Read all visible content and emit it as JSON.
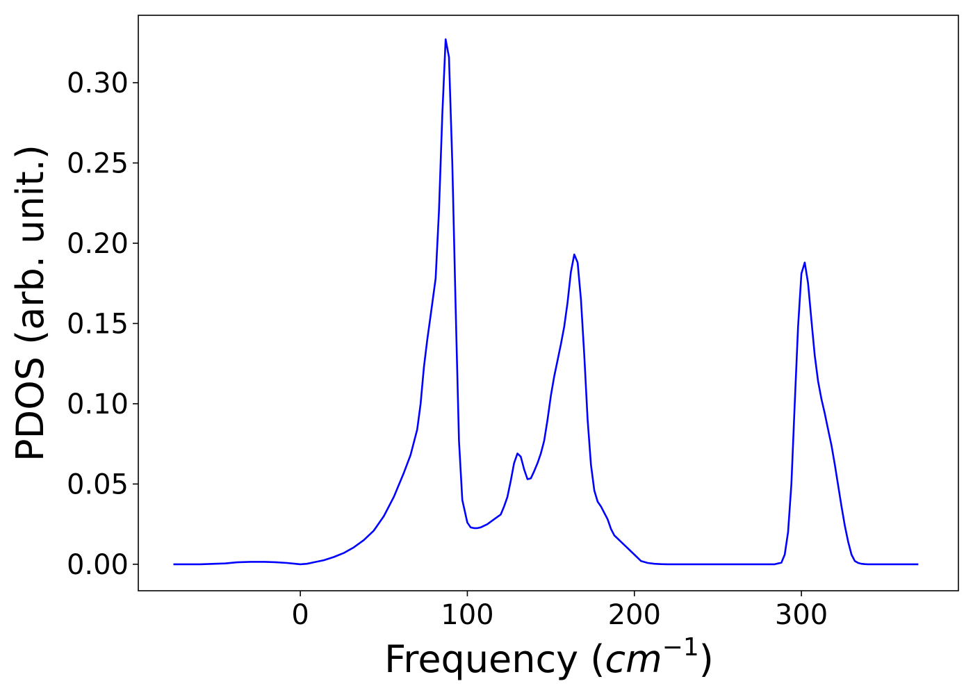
{
  "chart_data": {
    "type": "line",
    "title": "",
    "xlabel": "Frequency (",
    "xlabel_math": "cm",
    "xlabel_sup": "−1",
    "xlabel_close": ")",
    "ylabel": "PDOS (arb. unit.)",
    "xlim": [
      -97,
      394
    ],
    "ylim": [
      -0.0165,
      0.342
    ],
    "xticks": [
      0,
      100,
      200,
      300
    ],
    "xtick_labels": [
      "0",
      "100",
      "200",
      "300"
    ],
    "yticks": [
      0.0,
      0.05,
      0.1,
      0.15,
      0.2,
      0.25,
      0.3
    ],
    "ytick_labels": [
      "0.00",
      "0.05",
      "0.10",
      "0.15",
      "0.20",
      "0.25",
      "0.30"
    ],
    "grid": false,
    "line_color": "#0000ff",
    "series": [
      {
        "x": [
          -76,
          -60,
          -45,
          -38,
          -30,
          -22,
          -15,
          -8,
          -3,
          0,
          4,
          8,
          14,
          20,
          26,
          32,
          38,
          44,
          50,
          56,
          62,
          66,
          70,
          72,
          74,
          76,
          78,
          81,
          83,
          85,
          87,
          89,
          91,
          93,
          95,
          97,
          100,
          102,
          104,
          106,
          108,
          112,
          116,
          120,
          122,
          124,
          126,
          128,
          130,
          132,
          134,
          136,
          138,
          140,
          142,
          144,
          146,
          148,
          150,
          152,
          154,
          156,
          158,
          160,
          162,
          164,
          166,
          168,
          170,
          172,
          174,
          176,
          178,
          180,
          182,
          184,
          186,
          188,
          192,
          196,
          200,
          204,
          208,
          212,
          216,
          220,
          222,
          224,
          226,
          228,
          232,
          240,
          260,
          280,
          284,
          286,
          288,
          290,
          292,
          294,
          296,
          298,
          300,
          302,
          304,
          306,
          308,
          310,
          312,
          314,
          316,
          318,
          320,
          322,
          324,
          326,
          328,
          330,
          332,
          334,
          336,
          338,
          340,
          342,
          346,
          360,
          370
        ],
        "y": [
          0.0,
          0.0,
          0.0005,
          0.0012,
          0.0015,
          0.0015,
          0.0013,
          0.0008,
          0.0003,
          0.0,
          0.0003,
          0.0012,
          0.0025,
          0.0045,
          0.007,
          0.0105,
          0.015,
          0.021,
          0.03,
          0.042,
          0.057,
          0.068,
          0.084,
          0.1,
          0.123,
          0.14,
          0.155,
          0.178,
          0.22,
          0.28,
          0.327,
          0.316,
          0.25,
          0.16,
          0.077,
          0.04,
          0.026,
          0.023,
          0.0225,
          0.0225,
          0.023,
          0.025,
          0.028,
          0.031,
          0.036,
          0.042,
          0.052,
          0.063,
          0.069,
          0.067,
          0.059,
          0.053,
          0.0535,
          0.058,
          0.063,
          0.069,
          0.077,
          0.09,
          0.105,
          0.117,
          0.127,
          0.137,
          0.148,
          0.163,
          0.182,
          0.193,
          0.188,
          0.165,
          0.13,
          0.09,
          0.062,
          0.046,
          0.039,
          0.036,
          0.032,
          0.028,
          0.022,
          0.018,
          0.014,
          0.01,
          0.006,
          0.002,
          0.0008,
          0.0003,
          0.0001,
          0.0,
          0.0,
          0.0,
          0.0,
          0.0,
          0.0,
          0.0,
          0.0,
          0.0,
          0.0,
          0.0005,
          0.001,
          0.006,
          0.02,
          0.05,
          0.1,
          0.148,
          0.181,
          0.188,
          0.175,
          0.152,
          0.13,
          0.114,
          0.103,
          0.094,
          0.084,
          0.074,
          0.062,
          0.049,
          0.036,
          0.024,
          0.014,
          0.006,
          0.002,
          0.0008,
          0.0003,
          0.0001,
          0.0,
          0.0,
          0.0,
          0.0,
          0.0
        ]
      }
    ]
  }
}
